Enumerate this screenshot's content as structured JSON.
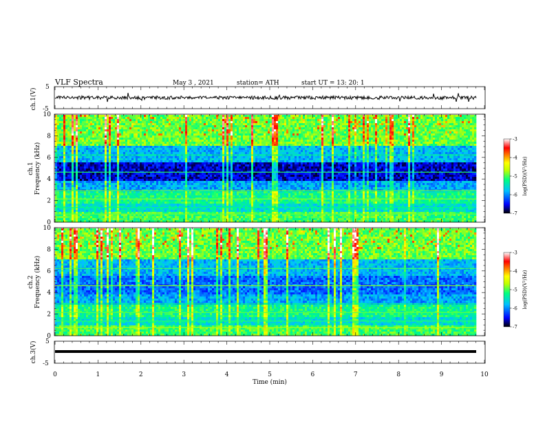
{
  "header": {
    "title": "VLF  Spectra",
    "date": "May 3  , 2021",
    "station": "station= ATH",
    "start": "start  UT  =    13: 20: 1"
  },
  "chart_data": [
    {
      "type": "line",
      "panel": "ch1-waveform",
      "ylabel": "ch.1(V)",
      "ylim": [
        -5,
        5
      ],
      "yticks": [
        "5",
        "-5"
      ],
      "xlim": [
        0,
        10
      ],
      "series": [
        {
          "values_desc": "noisy trace near 0 V spanning 0 to 9.8 min"
        }
      ]
    },
    {
      "type": "heatmap",
      "panel": "ch1-spectrogram",
      "ylabel": "ch.1\nFrequency (kHz)",
      "ylim": [
        0,
        10
      ],
      "yticks": [
        "0",
        "2",
        "4",
        "6",
        "8",
        "10"
      ],
      "xlim": [
        0,
        10
      ],
      "colorbar": {
        "label": "log(PSD)(V²/Hz)",
        "range": [
          -7,
          -3
        ],
        "ticks": [
          "-3",
          "-4",
          "-5",
          "-6",
          "-7"
        ]
      }
    },
    {
      "type": "heatmap",
      "panel": "ch2-spectrogram",
      "ylabel": "ch.2\nFrequency (kHz)",
      "ylim": [
        0,
        10
      ],
      "yticks": [
        "0",
        "2",
        "4",
        "6",
        "8",
        "10"
      ],
      "xlim": [
        0,
        10
      ],
      "colorbar": {
        "label": "log(PSD)(V²/Hz)",
        "range": [
          -7,
          -3
        ],
        "ticks": [
          "-3",
          "-4",
          "-5",
          "-6",
          "-7"
        ]
      }
    },
    {
      "type": "line",
      "panel": "ch3-waveform",
      "ylabel": "ch.3(V)",
      "ylim": [
        -5,
        5
      ],
      "yticks": [
        "5",
        "-5"
      ],
      "xlim": [
        0,
        10
      ],
      "series": [
        {
          "values_desc": "flat thick trace near -1 V"
        }
      ],
      "xlabel": "Time  (min)",
      "xticks": [
        "0",
        "1",
        "2",
        "3",
        "4",
        "5",
        "6",
        "7",
        "8",
        "9",
        "10"
      ]
    }
  ],
  "labels": {
    "ch1_wave": "ch.1(V)",
    "ch1_spec_a": "ch.1",
    "ch1_spec_b": "Frequency  (kHz)",
    "ch2_spec_a": "ch.2",
    "ch2_spec_b": "Frequency  (kHz)",
    "ch3_wave": "ch.3(V)",
    "xlabel": "Time  (min)",
    "cb_label": "log(PSD)(V²/Hz)"
  },
  "ticks": {
    "wave_top": "5",
    "wave_bottom": "-5",
    "freq": [
      "0",
      "2",
      "4",
      "6",
      "8",
      "10"
    ],
    "time": [
      "0",
      "1",
      "2",
      "3",
      "4",
      "5",
      "6",
      "7",
      "8",
      "9",
      "10"
    ],
    "cb": [
      "-3",
      "-4",
      "-5",
      "-6",
      "-7"
    ]
  },
  "colors": {
    "cmap": [
      "#000000",
      "#0000ff",
      "#00c0ff",
      "#00ff80",
      "#c0ff00",
      "#ffff00",
      "#ff8000",
      "#ff0000",
      "#ffffff"
    ]
  }
}
